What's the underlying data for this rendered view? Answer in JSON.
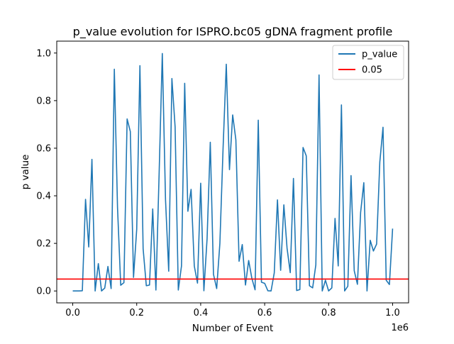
{
  "chart_data": {
    "type": "line",
    "title": "p_value evolution for ISPRO.bc05 gDNA fragment profile",
    "xlabel": "Number of Event",
    "ylabel": "p value",
    "x_offset_label": "1e6",
    "xlim": [
      -0.05,
      1.05
    ],
    "ylim": [
      -0.05,
      1.05
    ],
    "x_ticks": [
      0.0,
      0.2,
      0.4,
      0.6,
      0.8,
      1.0
    ],
    "x_tick_labels": [
      "0.0",
      "0.2",
      "0.4",
      "0.6",
      "0.8",
      "1.0"
    ],
    "y_ticks": [
      0.0,
      0.2,
      0.4,
      0.6,
      0.8,
      1.0
    ],
    "y_tick_labels": [
      "0.0",
      "0.2",
      "0.4",
      "0.6",
      "0.8",
      "1.0"
    ],
    "grid": false,
    "legend_position": "top-right",
    "series": [
      {
        "name": "p_value",
        "color": "#1f77b4",
        "points": [
          [
            0.0,
            0.0
          ],
          [
            0.01,
            0.0
          ],
          [
            0.02,
            0.0
          ],
          [
            0.03,
            0.001
          ],
          [
            0.04,
            0.385
          ],
          [
            0.05,
            0.185
          ],
          [
            0.06,
            0.553
          ],
          [
            0.07,
            0.0
          ],
          [
            0.08,
            0.115
          ],
          [
            0.09,
            0.0
          ],
          [
            0.1,
            0.012
          ],
          [
            0.11,
            0.103
          ],
          [
            0.12,
            0.01
          ],
          [
            0.13,
            0.932
          ],
          [
            0.14,
            0.35
          ],
          [
            0.15,
            0.024
          ],
          [
            0.16,
            0.035
          ],
          [
            0.17,
            0.723
          ],
          [
            0.18,
            0.67
          ],
          [
            0.19,
            0.057
          ],
          [
            0.2,
            0.26
          ],
          [
            0.21,
            0.947
          ],
          [
            0.22,
            0.178
          ],
          [
            0.23,
            0.022
          ],
          [
            0.24,
            0.025
          ],
          [
            0.25,
            0.345
          ],
          [
            0.26,
            0.004
          ],
          [
            0.27,
            0.49
          ],
          [
            0.28,
            0.998
          ],
          [
            0.29,
            0.385
          ],
          [
            0.3,
            0.083
          ],
          [
            0.31,
            0.893
          ],
          [
            0.32,
            0.69
          ],
          [
            0.33,
            0.004
          ],
          [
            0.34,
            0.105
          ],
          [
            0.35,
            0.873
          ],
          [
            0.36,
            0.335
          ],
          [
            0.37,
            0.427
          ],
          [
            0.38,
            0.105
          ],
          [
            0.39,
            0.033
          ],
          [
            0.4,
            0.453
          ],
          [
            0.41,
            0.001
          ],
          [
            0.42,
            0.22
          ],
          [
            0.43,
            0.625
          ],
          [
            0.44,
            0.07
          ],
          [
            0.45,
            0.01
          ],
          [
            0.46,
            0.2
          ],
          [
            0.47,
            0.6
          ],
          [
            0.48,
            0.953
          ],
          [
            0.49,
            0.51
          ],
          [
            0.5,
            0.74
          ],
          [
            0.51,
            0.635
          ],
          [
            0.52,
            0.125
          ],
          [
            0.53,
            0.195
          ],
          [
            0.54,
            0.025
          ],
          [
            0.55,
            0.128
          ],
          [
            0.56,
            0.053
          ],
          [
            0.57,
            0.005
          ],
          [
            0.58,
            0.718
          ],
          [
            0.59,
            0.037
          ],
          [
            0.6,
            0.032
          ],
          [
            0.61,
            0.001
          ],
          [
            0.62,
            0.0
          ],
          [
            0.63,
            0.076
          ],
          [
            0.64,
            0.383
          ],
          [
            0.65,
            0.087
          ],
          [
            0.66,
            0.362
          ],
          [
            0.67,
            0.18
          ],
          [
            0.68,
            0.077
          ],
          [
            0.69,
            0.473
          ],
          [
            0.7,
            0.002
          ],
          [
            0.71,
            0.006
          ],
          [
            0.72,
            0.603
          ],
          [
            0.73,
            0.568
          ],
          [
            0.74,
            0.022
          ],
          [
            0.75,
            0.013
          ],
          [
            0.76,
            0.11
          ],
          [
            0.77,
            0.908
          ],
          [
            0.78,
            0.0
          ],
          [
            0.79,
            0.045
          ],
          [
            0.8,
            0.0
          ],
          [
            0.81,
            0.013
          ],
          [
            0.82,
            0.305
          ],
          [
            0.83,
            0.105
          ],
          [
            0.84,
            0.782
          ],
          [
            0.85,
            0.0
          ],
          [
            0.86,
            0.02
          ],
          [
            0.87,
            0.485
          ],
          [
            0.88,
            0.085
          ],
          [
            0.89,
            0.028
          ],
          [
            0.9,
            0.33
          ],
          [
            0.91,
            0.455
          ],
          [
            0.92,
            0.0
          ],
          [
            0.93,
            0.213
          ],
          [
            0.94,
            0.168
          ],
          [
            0.95,
            0.197
          ],
          [
            0.96,
            0.542
          ],
          [
            0.97,
            0.688
          ],
          [
            0.98,
            0.045
          ],
          [
            0.99,
            0.027
          ],
          [
            1.0,
            0.262
          ]
        ]
      },
      {
        "name": "0.05",
        "color": "#ff0000",
        "type": "hline",
        "y": 0.05
      }
    ]
  }
}
